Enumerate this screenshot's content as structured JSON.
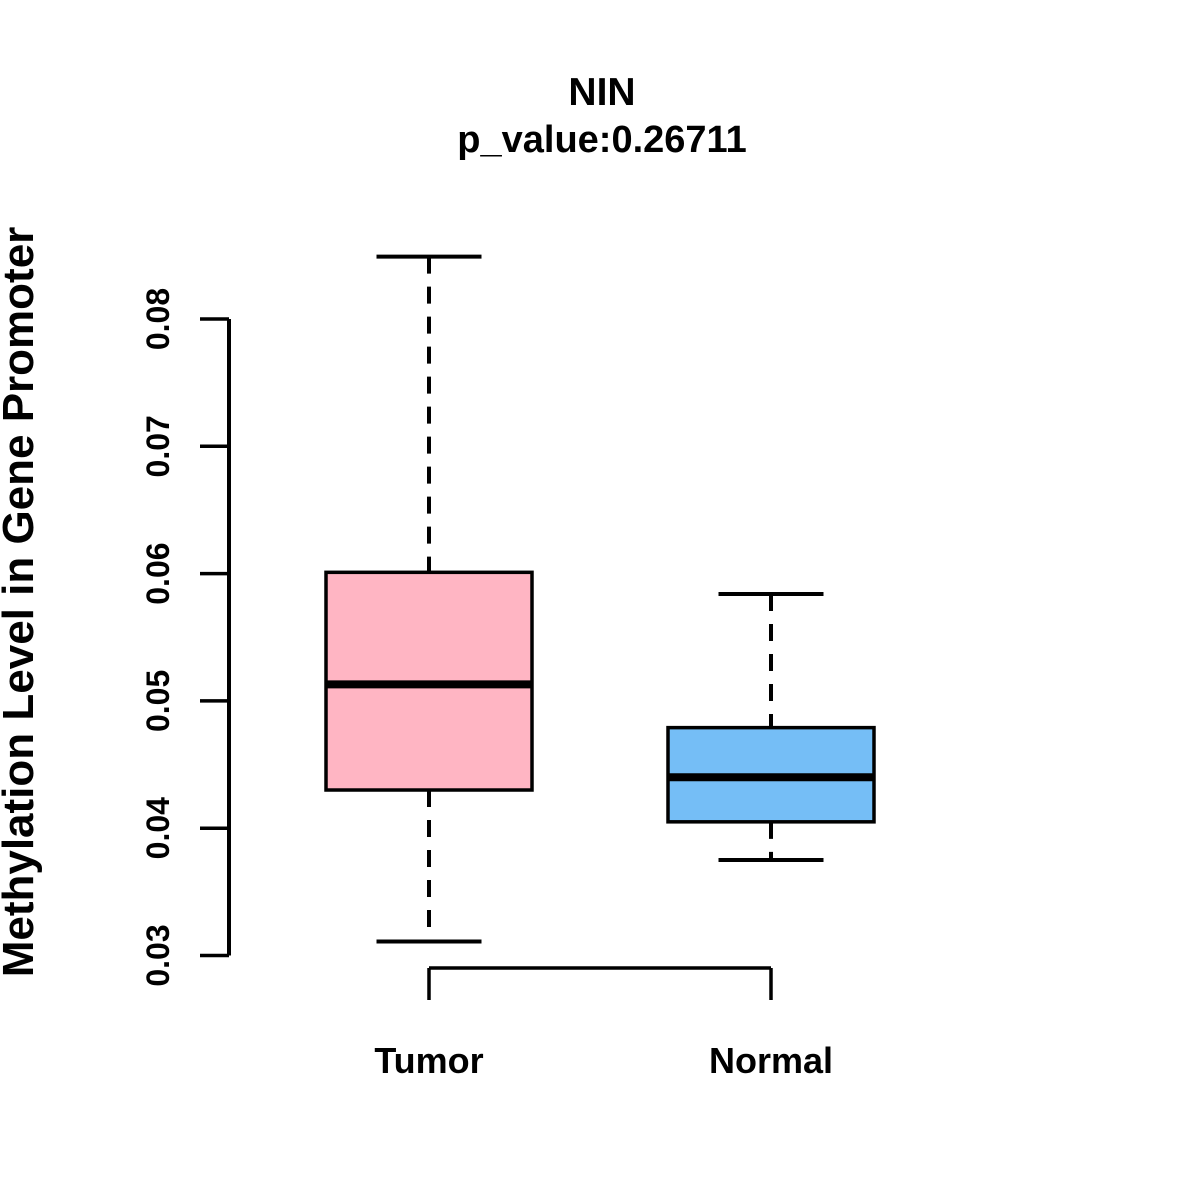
{
  "figure": {
    "background_color": "#FFFFFF",
    "stroke_color": "#000000"
  },
  "chart_data": {
    "type": "boxplot",
    "title": "NIN",
    "subtitle": "p_value:0.26711",
    "ylabel": "Methylation Level in Gene Promoter",
    "xlabel": "",
    "categories": [
      "Tumor",
      "Normal"
    ],
    "legend": "none",
    "grid": false,
    "y_axis": {
      "range": [
        0.0285,
        0.0855
      ],
      "ticks": [
        0.08,
        0.07,
        0.06,
        0.05,
        0.04,
        0.03
      ],
      "tick_labels": [
        "0.08",
        "0.07",
        "0.06",
        "0.05",
        "0.04",
        "0.03"
      ]
    },
    "series": [
      {
        "name": "Tumor",
        "fill_color": "#FFB5C3",
        "stroke_color": "#000000",
        "whisker_low": 0.0311,
        "q1": 0.043,
        "median": 0.0513,
        "q3": 0.0601,
        "whisker_high": 0.0849,
        "outliers": []
      },
      {
        "name": "Normal",
        "fill_color": "#75BEF6",
        "stroke_color": "#000000",
        "whisker_low": 0.0375,
        "q1": 0.0405,
        "median": 0.044,
        "q3": 0.0479,
        "whisker_high": 0.0584,
        "outliers": []
      }
    ]
  }
}
